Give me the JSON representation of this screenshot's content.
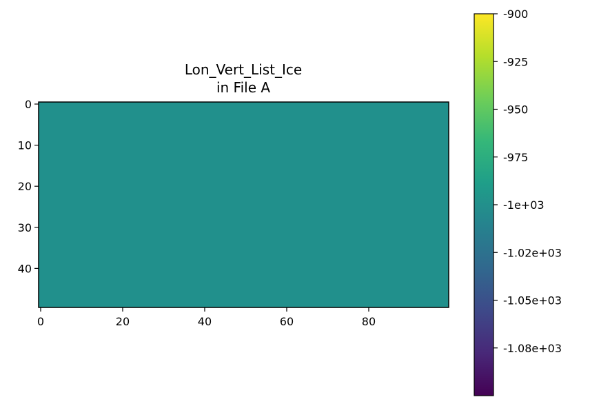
{
  "chart_data": {
    "type": "heatmap",
    "title": "Lon_Vert_List_Ice\nin File A",
    "title_lines": [
      "Lon_Vert_List_Ice",
      "in File A"
    ],
    "xlabel": "",
    "ylabel": "",
    "grid": false,
    "colormap": "viridis",
    "fill_value": -1000,
    "fill_color": "#21908c",
    "shape": {
      "rows": 50,
      "cols": 100
    },
    "xlim": [
      -0.5,
      99.5
    ],
    "ylim": [
      49.5,
      -0.5
    ],
    "x_ticks": [
      0,
      20,
      40,
      60,
      80
    ],
    "x_tick_labels": [
      "0",
      "20",
      "40",
      "60",
      "80"
    ],
    "y_ticks": [
      0,
      10,
      20,
      30,
      40
    ],
    "y_tick_labels": [
      "0",
      "10",
      "20",
      "30",
      "40"
    ],
    "colorbar": {
      "vmin": -1100,
      "vmax": -900,
      "ticks": [
        -900,
        -925,
        -950,
        -975,
        -1000,
        -1025,
        -1050,
        -1075
      ],
      "tick_labels": [
        "-900",
        "-925",
        "-950",
        "-975",
        "-1e+03",
        "-1.02e+03",
        "-1.05e+03",
        "-1.08e+03"
      ],
      "colors": [
        "#440154",
        "#482878",
        "#3e4989",
        "#31688e",
        "#26828e",
        "#1f9e89",
        "#35b779",
        "#6ece58",
        "#b5de2b",
        "#fde725"
      ]
    }
  }
}
